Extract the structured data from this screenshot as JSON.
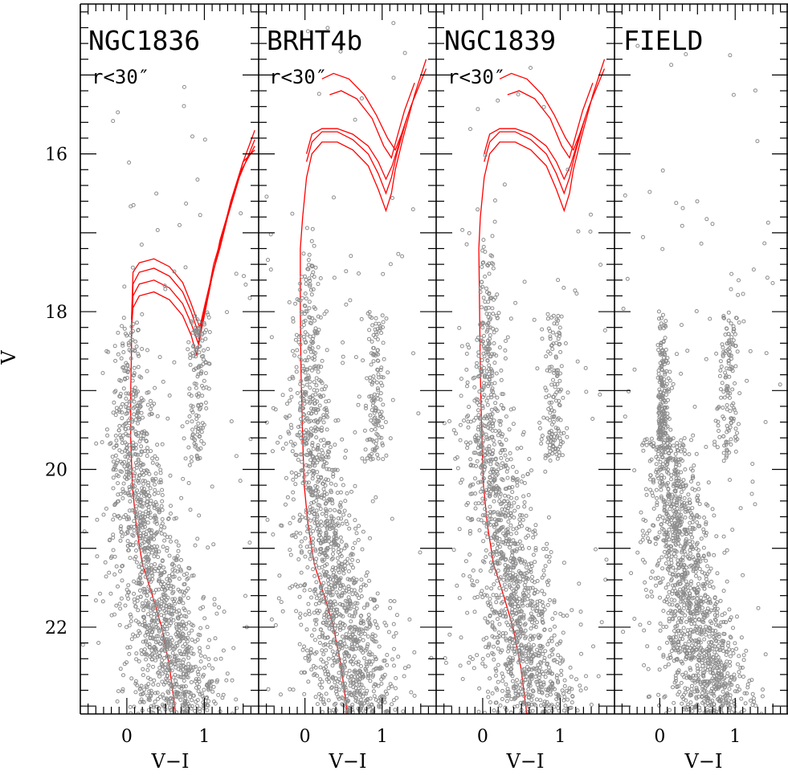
{
  "chart_data": {
    "type": "scatter",
    "ylabel": "V",
    "y_range": [
      23.1,
      14.1
    ],
    "y_ticks": [
      16,
      18,
      20,
      22
    ],
    "x_range": [
      -0.6,
      1.7
    ],
    "x_ticks": [
      0,
      1
    ],
    "point_color": "#8c8c8c",
    "isochrone_color": "#ff0000",
    "panels": [
      {
        "id": "ngc1836",
        "title": "NGC1836",
        "subtitle": "r<30″",
        "xlabel": "V−I",
        "show_y_ticklabels": true,
        "isochrone_shift": [
          0,
          0
        ],
        "has_isochrones": true,
        "isochrones": [
          [
            [
              0.63,
              23.1
            ],
            [
              0.55,
              22.5
            ],
            [
              0.45,
              22.0
            ],
            [
              0.33,
              21.6
            ],
            [
              0.2,
              21.2
            ],
            [
              0.12,
              20.7
            ],
            [
              0.07,
              20.2
            ],
            [
              0.05,
              19.6
            ],
            [
              0.05,
              19.0
            ],
            [
              0.06,
              18.5
            ],
            [
              0.06,
              18.2
            ],
            [
              0.08,
              17.95
            ],
            [
              0.16,
              17.8
            ],
            [
              0.35,
              17.75
            ],
            [
              0.55,
              17.85
            ],
            [
              0.72,
              18.05
            ],
            [
              0.83,
              18.3
            ],
            [
              0.9,
              18.55
            ],
            [
              0.95,
              18.3
            ],
            [
              1.0,
              18.0
            ],
            [
              1.05,
              17.8
            ],
            [
              1.1,
              17.55
            ],
            [
              1.15,
              17.35
            ],
            [
              1.2,
              17.1
            ],
            [
              1.35,
              16.6
            ],
            [
              1.5,
              16.1
            ],
            [
              1.65,
              15.7
            ]
          ],
          [
            [
              0.06,
              18.3
            ],
            [
              0.08,
              17.8
            ],
            [
              0.16,
              17.65
            ],
            [
              0.35,
              17.6
            ],
            [
              0.55,
              17.7
            ],
            [
              0.72,
              17.9
            ],
            [
              0.83,
              18.15
            ],
            [
              0.92,
              18.4
            ],
            [
              0.98,
              18.15
            ],
            [
              1.04,
              17.85
            ],
            [
              1.09,
              17.6
            ],
            [
              1.14,
              17.4
            ],
            [
              1.2,
              17.2
            ],
            [
              1.3,
              16.8
            ],
            [
              1.45,
              16.3
            ],
            [
              1.65,
              15.82
            ]
          ],
          [
            [
              0.06,
              18.2
            ],
            [
              0.08,
              17.65
            ],
            [
              0.16,
              17.5
            ],
            [
              0.35,
              17.45
            ],
            [
              0.55,
              17.55
            ],
            [
              0.72,
              17.75
            ],
            [
              0.83,
              18.0
            ],
            [
              0.93,
              18.3
            ],
            [
              1.0,
              18.0
            ],
            [
              1.06,
              17.75
            ],
            [
              1.11,
              17.5
            ],
            [
              1.17,
              17.3
            ],
            [
              1.22,
              17.1
            ],
            [
              1.32,
              16.7
            ],
            [
              1.48,
              16.2
            ],
            [
              1.65,
              15.9
            ]
          ],
          [
            [
              0.06,
              18.1
            ],
            [
              0.08,
              17.5
            ],
            [
              0.16,
              17.38
            ],
            [
              0.35,
              17.33
            ],
            [
              0.55,
              17.43
            ],
            [
              0.72,
              17.63
            ],
            [
              0.83,
              17.9
            ],
            [
              0.94,
              18.2
            ],
            [
              1.01,
              17.9
            ],
            [
              1.07,
              17.65
            ],
            [
              1.12,
              17.4
            ],
            [
              1.18,
              17.2
            ],
            [
              1.24,
              17.0
            ],
            [
              1.34,
              16.6
            ],
            [
              1.5,
              16.1
            ],
            [
              1.65,
              15.95
            ]
          ]
        ]
      },
      {
        "id": "brht4b",
        "title": "BRHT4b",
        "subtitle": "r<30″",
        "xlabel": "V−I",
        "show_y_ticklabels": false,
        "isochrone_shift": [
          -0.03,
          0.0
        ],
        "has_isochrones": true,
        "isochrones": [
          [
            [
              0.58,
              23.1
            ],
            [
              0.5,
              22.5
            ],
            [
              0.4,
              22.0
            ],
            [
              0.28,
              21.6
            ],
            [
              0.15,
              21.2
            ],
            [
              0.07,
              20.7
            ],
            [
              0.02,
              20.2
            ],
            [
              0.0,
              19.6
            ],
            [
              -0.02,
              18.8
            ],
            [
              -0.03,
              18.0
            ],
            [
              -0.03,
              17.2
            ],
            [
              0.0,
              16.8
            ],
            [
              0.05,
              16.3
            ],
            [
              0.12,
              16.0
            ],
            [
              0.25,
              15.85
            ],
            [
              0.45,
              15.85
            ],
            [
              0.65,
              15.95
            ],
            [
              0.85,
              16.15
            ],
            [
              0.98,
              16.45
            ],
            [
              1.08,
              16.72
            ],
            [
              1.15,
              16.5
            ],
            [
              1.2,
              16.2
            ],
            [
              1.3,
              15.8
            ],
            [
              1.45,
              15.25
            ],
            [
              1.6,
              14.8
            ]
          ],
          [
            [
              0.05,
              16.1
            ],
            [
              0.12,
              15.85
            ],
            [
              0.25,
              15.72
            ],
            [
              0.45,
              15.72
            ],
            [
              0.65,
              15.82
            ],
            [
              0.85,
              16.0
            ],
            [
              0.98,
              16.25
            ],
            [
              1.08,
              16.5
            ],
            [
              1.15,
              16.3
            ],
            [
              1.22,
              16.0
            ],
            [
              1.32,
              15.65
            ]
          ],
          [
            [
              0.05,
              16.0
            ],
            [
              0.12,
              15.75
            ],
            [
              0.25,
              15.68
            ],
            [
              0.45,
              15.68
            ],
            [
              0.65,
              15.75
            ],
            [
              0.85,
              15.9
            ],
            [
              0.98,
              16.1
            ],
            [
              1.08,
              16.32
            ],
            [
              1.16,
              16.15
            ],
            [
              1.24,
              15.9
            ],
            [
              1.35,
              15.55
            ]
          ],
          [
            [
              0.35,
              15.25
            ],
            [
              0.5,
              15.2
            ],
            [
              0.7,
              15.3
            ],
            [
              0.9,
              15.55
            ],
            [
              1.05,
              15.9
            ],
            [
              1.15,
              16.05
            ],
            [
              1.22,
              15.8
            ],
            [
              1.32,
              15.45
            ],
            [
              1.45,
              15.1
            ]
          ],
          [
            [
              0.25,
              15.05
            ],
            [
              0.4,
              14.98
            ],
            [
              0.6,
              15.05
            ],
            [
              0.8,
              15.25
            ],
            [
              0.95,
              15.5
            ],
            [
              1.1,
              15.8
            ],
            [
              1.2,
              15.95
            ],
            [
              1.28,
              15.75
            ],
            [
              1.4,
              15.4
            ],
            [
              1.6,
              14.92
            ]
          ]
        ]
      },
      {
        "id": "ngc1839",
        "title": "NGC1839",
        "subtitle": "r<30″",
        "xlabel": "V−I",
        "show_y_ticklabels": false,
        "isochrone_shift": [
          -0.03,
          0.0
        ],
        "has_isochrones": true,
        "isochrones": [
          [
            [
              0.6,
              23.1
            ],
            [
              0.52,
              22.5
            ],
            [
              0.42,
              22.0
            ],
            [
              0.3,
              21.6
            ],
            [
              0.17,
              21.2
            ],
            [
              0.09,
              20.7
            ],
            [
              0.04,
              20.2
            ],
            [
              0.02,
              19.6
            ],
            [
              0.0,
              18.8
            ],
            [
              -0.01,
              18.0
            ],
            [
              -0.02,
              17.2
            ],
            [
              0.0,
              16.8
            ],
            [
              0.05,
              16.3
            ],
            [
              0.12,
              16.0
            ],
            [
              0.25,
              15.85
            ],
            [
              0.45,
              15.85
            ],
            [
              0.65,
              15.95
            ],
            [
              0.85,
              16.15
            ],
            [
              0.98,
              16.45
            ],
            [
              1.08,
              16.72
            ],
            [
              1.15,
              16.5
            ],
            [
              1.2,
              16.2
            ],
            [
              1.3,
              15.8
            ],
            [
              1.45,
              15.25
            ],
            [
              1.6,
              14.8
            ]
          ],
          [
            [
              0.05,
              16.1
            ],
            [
              0.12,
              15.85
            ],
            [
              0.25,
              15.72
            ],
            [
              0.45,
              15.72
            ],
            [
              0.65,
              15.82
            ],
            [
              0.85,
              16.0
            ],
            [
              0.98,
              16.25
            ],
            [
              1.08,
              16.5
            ],
            [
              1.15,
              16.3
            ],
            [
              1.22,
              16.0
            ],
            [
              1.32,
              15.65
            ]
          ],
          [
            [
              0.05,
              16.0
            ],
            [
              0.12,
              15.75
            ],
            [
              0.25,
              15.68
            ],
            [
              0.45,
              15.68
            ],
            [
              0.65,
              15.75
            ],
            [
              0.85,
              15.9
            ],
            [
              0.98,
              16.1
            ],
            [
              1.08,
              16.32
            ],
            [
              1.16,
              16.15
            ],
            [
              1.24,
              15.9
            ],
            [
              1.35,
              15.55
            ]
          ],
          [
            [
              0.35,
              15.25
            ],
            [
              0.5,
              15.2
            ],
            [
              0.7,
              15.3
            ],
            [
              0.9,
              15.55
            ],
            [
              1.05,
              15.9
            ],
            [
              1.15,
              16.05
            ],
            [
              1.22,
              15.8
            ],
            [
              1.32,
              15.45
            ],
            [
              1.45,
              15.1
            ]
          ],
          [
            [
              0.25,
              15.05
            ],
            [
              0.4,
              14.98
            ],
            [
              0.6,
              15.05
            ],
            [
              0.8,
              15.25
            ],
            [
              0.95,
              15.5
            ],
            [
              1.1,
              15.8
            ],
            [
              1.2,
              15.95
            ],
            [
              1.28,
              15.75
            ],
            [
              1.4,
              15.4
            ],
            [
              1.6,
              14.92
            ]
          ]
        ]
      },
      {
        "id": "field",
        "title": "FIELD",
        "subtitle": "",
        "xlabel": "V−I",
        "show_y_ticklabels": false,
        "isochrone_shift": [
          0,
          0
        ],
        "has_isochrones": false,
        "isochrones": []
      }
    ]
  }
}
